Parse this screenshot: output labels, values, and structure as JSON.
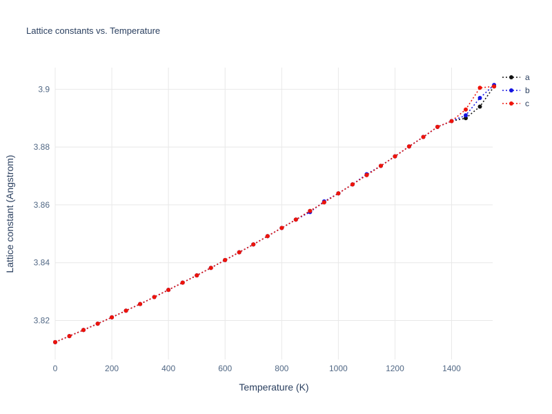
{
  "title": "Lattice constants vs. Temperature",
  "chart_data": {
    "type": "line",
    "title": "Lattice constants vs. Temperature",
    "xlabel": "Temperature (K)",
    "ylabel": "Lattice constant (Angstrom)",
    "xlim": [
      0,
      1545
    ],
    "ylim": [
      3.8065,
      3.9075
    ],
    "xticks": [
      0,
      200,
      400,
      600,
      800,
      1000,
      1200,
      1400
    ],
    "yticks": [
      3.82,
      3.84,
      3.86,
      3.88,
      3.9
    ],
    "grid": true,
    "line_style": "dotted",
    "marker": "circle",
    "legend_position": "top-right",
    "x": [
      0,
      50,
      100,
      150,
      200,
      250,
      300,
      350,
      400,
      450,
      500,
      550,
      600,
      650,
      700,
      750,
      800,
      850,
      900,
      950,
      1000,
      1050,
      1100,
      1150,
      1200,
      1250,
      1300,
      1350,
      1400,
      1450,
      1500,
      1550
    ],
    "series": [
      {
        "name": "a",
        "color": "#111111",
        "values": [
          3.8125,
          3.8146,
          3.8167,
          3.8189,
          3.8211,
          3.8234,
          3.8257,
          3.8281,
          3.8306,
          3.8331,
          3.8356,
          3.8382,
          3.8409,
          3.8436,
          3.8463,
          3.8492,
          3.852,
          3.8549,
          3.8579,
          3.8609,
          3.864,
          3.8671,
          3.8703,
          3.8735,
          3.8768,
          3.8802,
          3.8835,
          3.887,
          3.889,
          3.89,
          3.894,
          3.901
        ]
      },
      {
        "name": "b",
        "color": "#1414e0",
        "values": [
          3.8125,
          3.8146,
          3.8167,
          3.8189,
          3.8211,
          3.8234,
          3.8257,
          3.8281,
          3.8306,
          3.8331,
          3.8356,
          3.8382,
          3.8409,
          3.8436,
          3.8463,
          3.8492,
          3.852,
          3.8549,
          3.8575,
          3.8612,
          3.864,
          3.8671,
          3.8706,
          3.8735,
          3.8768,
          3.8802,
          3.8835,
          3.887,
          3.889,
          3.891,
          3.897,
          3.9015
        ]
      },
      {
        "name": "c",
        "color": "#ee1409",
        "values": [
          3.8125,
          3.8146,
          3.8167,
          3.8189,
          3.8211,
          3.8234,
          3.8257,
          3.8281,
          3.8306,
          3.8331,
          3.8356,
          3.8382,
          3.8409,
          3.8436,
          3.8463,
          3.8492,
          3.852,
          3.8549,
          3.8579,
          3.8609,
          3.864,
          3.8671,
          3.8703,
          3.8735,
          3.8768,
          3.8802,
          3.8835,
          3.887,
          3.889,
          3.893,
          3.9005,
          3.901
        ]
      }
    ]
  },
  "colors": {
    "title": "#2a3f5f",
    "tick": "#506784",
    "grid": "#e8e8e8",
    "background": "#ffffff"
  }
}
